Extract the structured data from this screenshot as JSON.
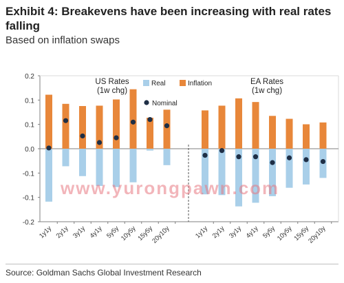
{
  "header": {
    "title": "Exhibit 4: Breakevens have been increasing with real rates falling",
    "subtitle": "Based on inflation swaps"
  },
  "footer": {
    "source": "Source: Goldman Sachs Global Investment Research"
  },
  "watermark": "www.yurongpawn.com",
  "colors": {
    "real": "#a9cfe9",
    "inflation": "#e8873a",
    "nominal": "#1f2f46",
    "axis": "#7f7f7f"
  },
  "chart_data": {
    "type": "bar",
    "yticks": [
      "0.2",
      "0.1",
      "0.1",
      "0.0",
      "-0.1",
      "-0.1",
      "-0.2"
    ],
    "ylim": [
      -0.2,
      0.2
    ],
    "legend": {
      "real": "Real",
      "inflation": "Inflation",
      "nominal": "Nominal"
    },
    "panels": [
      {
        "name": "US Rates",
        "label_line1": "US Rates",
        "label_line2": "(1w chg)",
        "categories": [
          "1y1y",
          "2y1y",
          "3y1y",
          "4y1y",
          "5y5y",
          "10y5y",
          "15y5y",
          "20y10y"
        ],
        "series": [
          {
            "name": "Real",
            "values": [
              -0.145,
              -0.048,
              -0.075,
              -0.102,
              -0.105,
              -0.092,
              -0.005,
              -0.045
            ]
          },
          {
            "name": "Inflation",
            "values": [
              0.148,
              0.123,
              0.117,
              0.118,
              0.135,
              0.163,
              0.085,
              0.107
            ]
          },
          {
            "name": "Nominal",
            "values": [
              0.002,
              0.077,
              0.035,
              0.017,
              0.03,
              0.073,
              0.08,
              0.063
            ]
          }
        ]
      },
      {
        "name": "EA Rates",
        "label_line1": "EA Rates",
        "label_line2": "(1w chg)",
        "categories": [
          "1y1y",
          "2y1y",
          "3y1y",
          "4y1y",
          "5y5y",
          "10y5y",
          "15y5y",
          "20y10y"
        ],
        "series": [
          {
            "name": "Real",
            "values": [
              -0.125,
              -0.127,
              -0.158,
              -0.148,
              -0.13,
              -0.107,
              -0.098,
              -0.08
            ]
          },
          {
            "name": "Inflation",
            "values": [
              0.105,
              0.118,
              0.138,
              0.128,
              0.09,
              0.082,
              0.067,
              0.072
            ]
          },
          {
            "name": "Nominal",
            "values": [
              -0.018,
              -0.005,
              -0.022,
              -0.022,
              -0.038,
              -0.025,
              -0.03,
              -0.035
            ]
          }
        ]
      }
    ]
  }
}
